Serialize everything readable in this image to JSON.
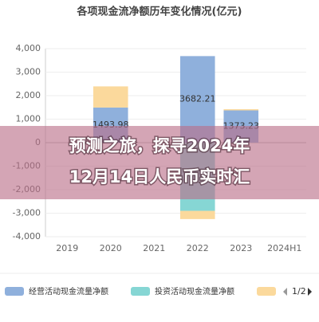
{
  "chart_data": {
    "type": "stacked_bar",
    "title": "各项现金流净额历年变化情况(亿元)",
    "categories": [
      "2019",
      "2020",
      "2021",
      "2022",
      "2023",
      "2024H1"
    ],
    "series": [
      {
        "name": "经营活动现金流量净额",
        "color": "#8fb0dc",
        "values": [
          null,
          1493.98,
          null,
          3682.21,
          1373.23,
          null
        ],
        "value_labels": [
          null,
          "1493.98",
          null,
          "3682.21",
          "1373.23",
          null
        ]
      },
      {
        "name": "投资活动现金流量净额",
        "color": "#86d6d4",
        "values": [
          null,
          null,
          null,
          -2900,
          null,
          null
        ]
      },
      {
        "name": null,
        "color": "#fbd99c",
        "values": [
          null,
          900,
          null,
          -350,
          50,
          null
        ]
      }
    ],
    "ylim": [
      -4000,
      4000
    ],
    "yticks": [
      {
        "value": -4000,
        "label": "-4,000"
      },
      {
        "value": -3000,
        "label": "-3,000"
      },
      {
        "value": -2000,
        "label": "-2,000"
      },
      {
        "value": -1000,
        "label": "-1,000"
      },
      0,
      {
        "value": 1000,
        "label": "1,000"
      },
      {
        "value": 2000,
        "label": "2,000"
      },
      {
        "value": 3000,
        "label": "3,000"
      },
      {
        "value": 4000,
        "label": "4,000"
      }
    ],
    "grid": true,
    "legend_page": "1/2",
    "overlay_text": [
      "预测之旅，探寻2024年",
      "12月14日人民币实时汇"
    ]
  }
}
